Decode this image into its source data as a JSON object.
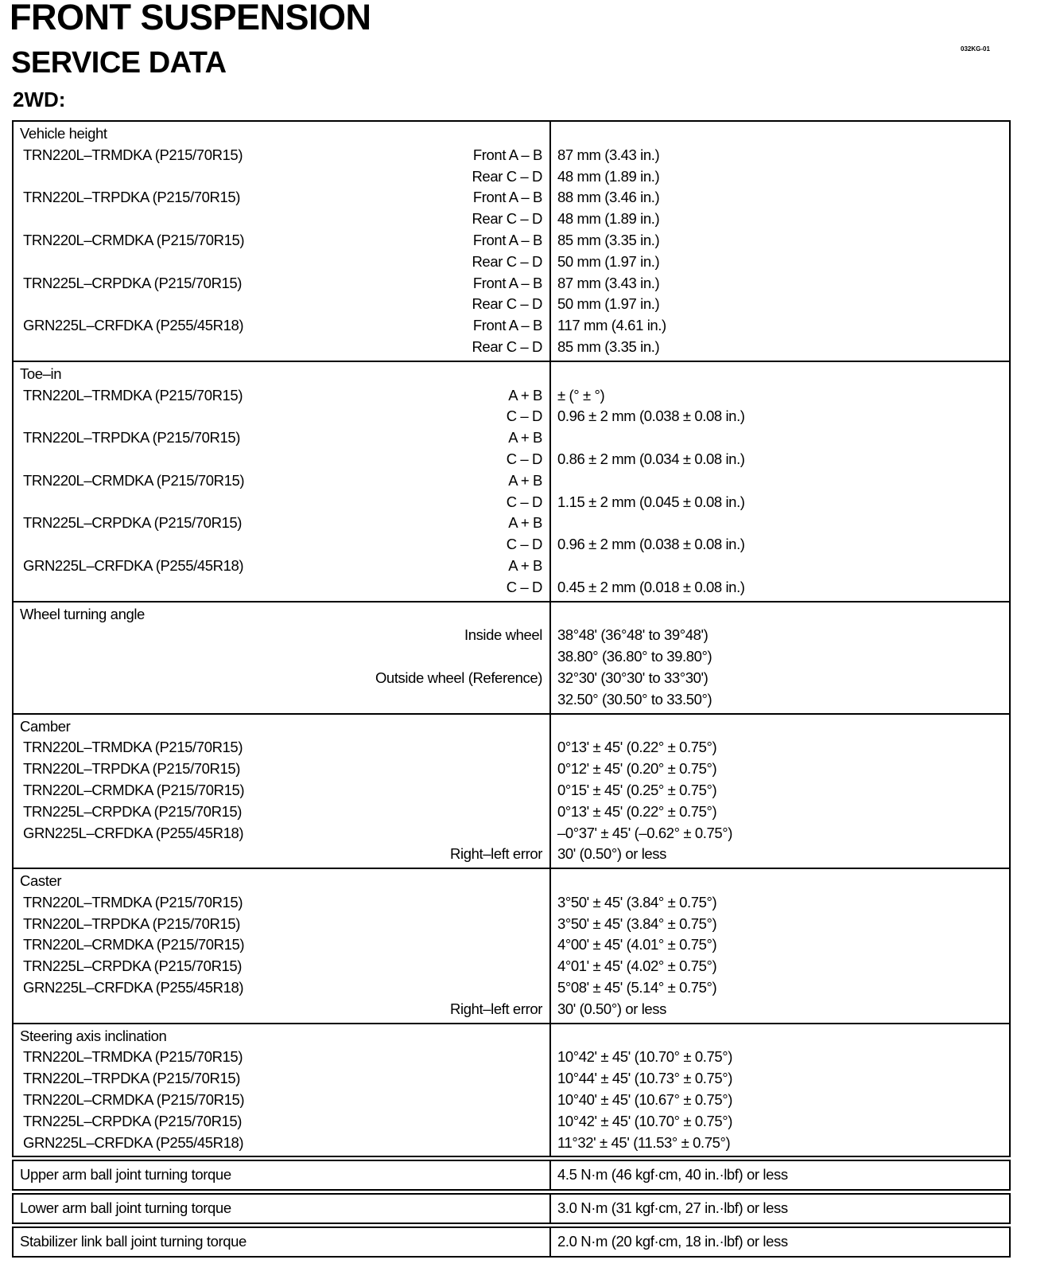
{
  "title": "FRONT SUSPENSION",
  "subtitle": "SERVICE DATA",
  "variant": "2WD:",
  "doc_code": "032KG-01",
  "sections": [
    {
      "title": "Vehicle height",
      "lines": [
        {
          "name": "TRN220L–TRMDKA (P215/70R15)",
          "label": "Front A – B",
          "value": "87 mm (3.43 in.)"
        },
        {
          "name": "",
          "label": "Rear C – D",
          "value": "48 mm (1.89 in.)"
        },
        {
          "name": "TRN220L–TRPDKA (P215/70R15)",
          "label": "Front A – B",
          "value": "88 mm (3.46 in.)"
        },
        {
          "name": "",
          "label": "Rear C – D",
          "value": "48 mm (1.89 in.)"
        },
        {
          "name": "TRN220L–CRMDKA (P215/70R15)",
          "label": "Front A – B",
          "value": "85 mm (3.35 in.)"
        },
        {
          "name": "",
          "label": "Rear C – D",
          "value": "50 mm (1.97 in.)"
        },
        {
          "name": "TRN225L–CRPDKA (P215/70R15)",
          "label": "Front A – B",
          "value": "87 mm (3.43 in.)"
        },
        {
          "name": "",
          "label": "Rear C – D",
          "value": "50 mm (1.97 in.)"
        },
        {
          "name": "GRN225L–CRFDKA (P255/45R18)",
          "label": "Front A – B",
          "value": "117 mm (4.61 in.)"
        },
        {
          "name": "",
          "label": "Rear C – D",
          "value": "85 mm (3.35 in.)"
        }
      ]
    },
    {
      "title": "Toe–in",
      "lines": [
        {
          "name": "TRN220L–TRMDKA (P215/70R15)",
          "label": "A + B",
          "value": "± (° ± °)"
        },
        {
          "name": "",
          "label": "C – D",
          "value": "0.96 ± 2 mm (0.038 ± 0.08 in.)"
        },
        {
          "name": "TRN220L–TRPDKA (P215/70R15)",
          "label": "A + B",
          "value": ""
        },
        {
          "name": "",
          "label": "C – D",
          "value": "0.86 ± 2 mm (0.034 ± 0.08 in.)"
        },
        {
          "name": "TRN220L–CRMDKA (P215/70R15)",
          "label": "A + B",
          "value": ""
        },
        {
          "name": "",
          "label": "C – D",
          "value": "1.15 ± 2 mm (0.045 ± 0.08 in.)"
        },
        {
          "name": "TRN225L–CRPDKA (P215/70R15)",
          "label": "A + B",
          "value": ""
        },
        {
          "name": "",
          "label": "C – D",
          "value": "0.96 ± 2 mm (0.038 ± 0.08 in.)"
        },
        {
          "name": "GRN225L–CRFDKA (P255/45R18)",
          "label": "A + B",
          "value": ""
        },
        {
          "name": "",
          "label": "C – D",
          "value": "0.45 ± 2 mm (0.018 ± 0.08 in.)"
        }
      ]
    },
    {
      "title": "Wheel turning angle",
      "lines": [
        {
          "name": "",
          "label": "Inside wheel",
          "value": "38°48' (36°48' to 39°48')"
        },
        {
          "name": "",
          "label": "",
          "value": "38.80° (36.80° to 39.80°)"
        },
        {
          "name": "",
          "label": "Outside wheel (Reference)",
          "value": "32°30' (30°30' to 33°30')"
        },
        {
          "name": "",
          "label": "",
          "value": "32.50° (30.50° to 33.50°)"
        }
      ]
    },
    {
      "title": "Camber",
      "lines": [
        {
          "name": "TRN220L–TRMDKA (P215/70R15)",
          "label": "",
          "value": "0°13' ± 45' (0.22° ± 0.75°)"
        },
        {
          "name": "TRN220L–TRPDKA (P215/70R15)",
          "label": "",
          "value": "0°12' ± 45' (0.20° ± 0.75°)"
        },
        {
          "name": "TRN220L–CRMDKA (P215/70R15)",
          "label": "",
          "value": "0°15' ± 45' (0.25° ± 0.75°)"
        },
        {
          "name": "TRN225L–CRPDKA (P215/70R15)",
          "label": "",
          "value": "0°13' ± 45' (0.22° ± 0.75°)"
        },
        {
          "name": "GRN225L–CRFDKA (P255/45R18)",
          "label": "",
          "value": "–0°37' ± 45' (–0.62° ± 0.75°)"
        },
        {
          "name": "",
          "label": "Right–left error",
          "value": "30' (0.50°) or less"
        }
      ]
    },
    {
      "title": "Caster",
      "lines": [
        {
          "name": "TRN220L–TRMDKA (P215/70R15)",
          "label": "",
          "value": "3°50' ± 45' (3.84° ± 0.75°)"
        },
        {
          "name": "TRN220L–TRPDKA (P215/70R15)",
          "label": "",
          "value": "3°50' ± 45' (3.84° ± 0.75°)"
        },
        {
          "name": "TRN220L–CRMDKA (P215/70R15)",
          "label": "",
          "value": "4°00' ± 45' (4.01° ± 0.75°)"
        },
        {
          "name": "TRN225L–CRPDKA (P215/70R15)",
          "label": "",
          "value": "4°01' ± 45' (4.02° ± 0.75°)"
        },
        {
          "name": "GRN225L–CRFDKA (P255/45R18)",
          "label": "",
          "value": "5°08' ± 45' (5.14° ± 0.75°)"
        },
        {
          "name": "",
          "label": "Right–left error",
          "value": "30' (0.50°) or less"
        }
      ]
    },
    {
      "title": "Steering axis inclination",
      "lines": [
        {
          "name": "TRN220L–TRMDKA (P215/70R15)",
          "label": "",
          "value": "10°42' ± 45' (10.70° ± 0.75°)"
        },
        {
          "name": "TRN220L–TRPDKA (P215/70R15)",
          "label": "",
          "value": "10°44' ± 45' (10.73° ± 0.75°)"
        },
        {
          "name": "TRN220L–CRMDKA (P215/70R15)",
          "label": "",
          "value": "10°40' ± 45' (10.67° ± 0.75°)"
        },
        {
          "name": "TRN225L–CRPDKA (P215/70R15)",
          "label": "",
          "value": "10°42' ± 45' (10.70° ± 0.75°)"
        },
        {
          "name": "GRN225L–CRFDKA (P255/45R18)",
          "label": "",
          "value": "11°32' ± 45' (11.53° ± 0.75°)"
        }
      ]
    }
  ],
  "torques": [
    {
      "name": "Upper arm ball joint turning torque",
      "value": "4.5 N·m (46 kgf·cm, 40 in.·lbf) or less"
    },
    {
      "name": "Lower arm ball joint turning torque",
      "value": "3.0 N·m (31 kgf·cm, 27 in.·lbf) or less"
    },
    {
      "name": "Stabilizer link ball joint turning torque",
      "value": "2.0 N·m (20 kgf·cm, 18 in.·lbf) or less"
    }
  ]
}
